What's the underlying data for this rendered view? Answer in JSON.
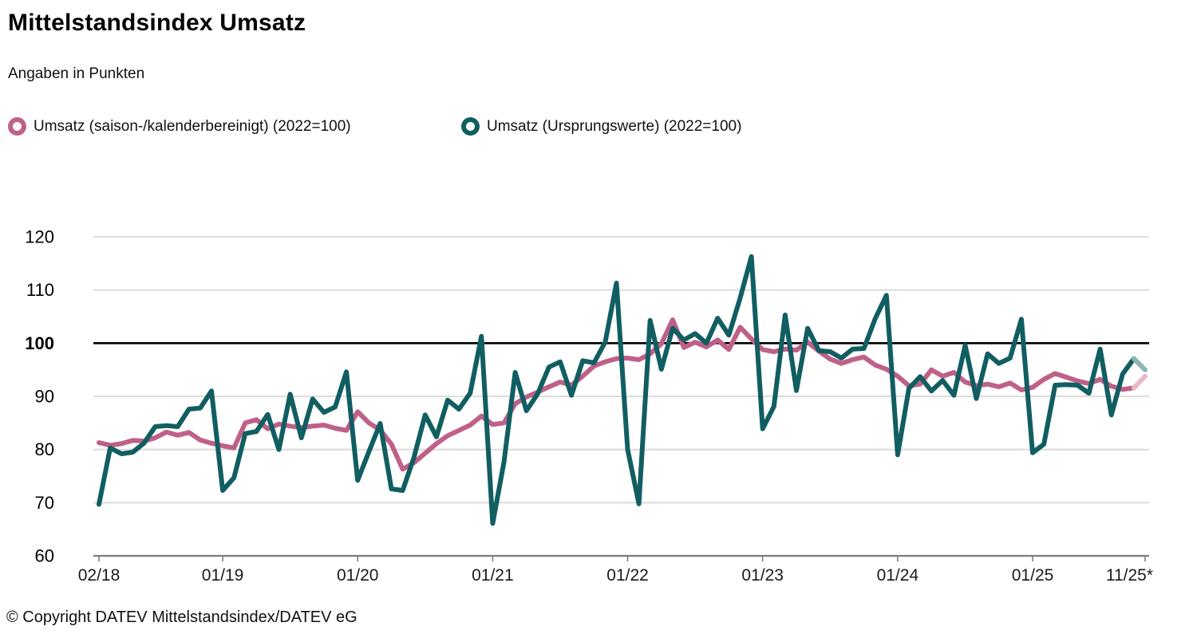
{
  "title": "Mittelstandsindex Umsatz",
  "subtitle": "Angaben in Punkten",
  "legend": [
    {
      "label": "Umsatz (saison-/kalenderbereinigt) (2022=100)",
      "color": "#bf6088"
    },
    {
      "label": "Umsatz (Ursprungswerte) (2022=100)",
      "color": "#115e62"
    }
  ],
  "footer": {
    "copyright": "© Copyright DATEV Mittelstandsindex/DATEV eG"
  },
  "chart_data": {
    "type": "line",
    "title": "Mittelstandsindex Umsatz",
    "ylabel": "Punkte",
    "ylim": [
      60,
      120
    ],
    "yticks": [
      60,
      70,
      80,
      90,
      100,
      110,
      120
    ],
    "emphasized_ytick": 100,
    "grid": "horizontal",
    "legend_position": "top",
    "x_tick_labels": [
      "02/18",
      "01/19",
      "01/20",
      "01/21",
      "01/22",
      "01/23",
      "01/24",
      "01/25",
      "11/25*"
    ],
    "x_tick_indices": [
      0,
      11,
      23,
      35,
      47,
      59,
      71,
      83,
      93
    ],
    "preliminary_from_index": 92,
    "x": [
      "02/18",
      "03/18",
      "04/18",
      "05/18",
      "06/18",
      "07/18",
      "08/18",
      "09/18",
      "10/18",
      "11/18",
      "12/18",
      "01/19",
      "02/19",
      "03/19",
      "04/19",
      "05/19",
      "06/19",
      "07/19",
      "08/19",
      "09/19",
      "10/19",
      "11/19",
      "12/19",
      "01/20",
      "02/20",
      "03/20",
      "04/20",
      "05/20",
      "06/20",
      "07/20",
      "08/20",
      "09/20",
      "10/20",
      "11/20",
      "12/20",
      "01/21",
      "02/21",
      "03/21",
      "04/21",
      "05/21",
      "06/21",
      "07/21",
      "08/21",
      "09/21",
      "10/21",
      "11/21",
      "12/21",
      "01/22",
      "02/22",
      "03/22",
      "04/22",
      "05/22",
      "06/22",
      "07/22",
      "08/22",
      "09/22",
      "10/22",
      "11/22",
      "12/22",
      "01/23",
      "02/23",
      "03/23",
      "04/23",
      "05/23",
      "06/23",
      "07/23",
      "08/23",
      "09/23",
      "10/23",
      "11/23",
      "12/23",
      "01/24",
      "02/24",
      "03/24",
      "04/24",
      "05/24",
      "06/24",
      "07/24",
      "08/24",
      "09/24",
      "10/24",
      "11/24",
      "12/24",
      "01/25",
      "02/25",
      "03/25",
      "04/25",
      "05/25",
      "06/25",
      "07/25",
      "08/25",
      "09/25",
      "10/25",
      "11/25"
    ],
    "series": [
      {
        "name": "Umsatz (saison-/kalenderbereinigt) (2022=100)",
        "color": "#bf6088",
        "color_preliminary": "#eab8ca",
        "values": [
          81.3,
          80.8,
          81.1,
          81.7,
          81.6,
          82.2,
          83.3,
          82.7,
          83.2,
          81.8,
          81.2,
          80.7,
          80.3,
          85.0,
          85.6,
          83.9,
          84.8,
          84.4,
          84.1,
          84.4,
          84.6,
          84.0,
          83.6,
          87.1,
          85.0,
          83.7,
          81.0,
          76.3,
          77.5,
          79.3,
          81.1,
          82.6,
          83.6,
          84.6,
          86.3,
          84.7,
          85.0,
          88.6,
          89.9,
          90.8,
          91.8,
          92.7,
          92.1,
          93.8,
          95.7,
          96.5,
          97.1,
          97.2,
          96.9,
          98.0,
          99.9,
          104.4,
          99.2,
          100.2,
          99.3,
          100.6,
          98.8,
          103.0,
          100.8,
          98.8,
          98.4,
          98.9,
          98.7,
          100.2,
          98.5,
          97.0,
          96.2,
          96.9,
          97.4,
          95.9,
          95.1,
          93.8,
          92.0,
          92.3,
          95.0,
          93.8,
          94.5,
          92.7,
          92.0,
          92.3,
          91.8,
          92.5,
          91.2,
          91.7,
          93.2,
          94.3,
          93.6,
          92.9,
          92.4,
          93.2,
          91.9,
          91.3,
          91.6,
          93.8
        ]
      },
      {
        "name": "Umsatz (Ursprungswerte) (2022=100)",
        "color": "#115e62",
        "color_preliminary": "#8db4b6",
        "values": [
          69.7,
          80.3,
          79.2,
          79.5,
          81.2,
          84.3,
          84.5,
          84.3,
          87.6,
          87.8,
          91.0,
          72.3,
          74.7,
          83.0,
          83.4,
          86.6,
          80.0,
          90.4,
          82.2,
          89.5,
          87.0,
          88.0,
          94.6,
          74.2,
          79.6,
          84.9,
          72.6,
          72.3,
          78.5,
          86.5,
          82.4,
          89.3,
          87.6,
          90.6,
          101.3,
          66.1,
          77.6,
          94.5,
          87.3,
          90.5,
          95.5,
          96.5,
          90.2,
          96.7,
          96.3,
          100.2,
          111.3,
          80.0,
          69.8,
          104.3,
          95.1,
          102.8,
          100.6,
          101.8,
          100.0,
          104.7,
          101.5,
          108.5,
          116.3,
          83.9,
          88.1,
          105.3,
          91.1,
          102.8,
          98.6,
          98.4,
          97.2,
          98.9,
          99.0,
          104.6,
          109.0,
          79.0,
          91.5,
          93.7,
          91.0,
          93.0,
          90.2,
          99.6,
          89.6,
          98.0,
          96.2,
          97.2,
          104.5,
          79.4,
          81.0,
          92.1,
          92.2,
          92.1,
          90.6,
          98.9,
          86.5,
          94.2,
          97.1,
          95.0
        ]
      }
    ],
    "style": {
      "line_width": 6,
      "gridline_color": "#d8d8d8",
      "reference_line_color": "#000000",
      "axis_color": "#7d7d7d",
      "tick_label_color": "#1a1a1a"
    }
  }
}
